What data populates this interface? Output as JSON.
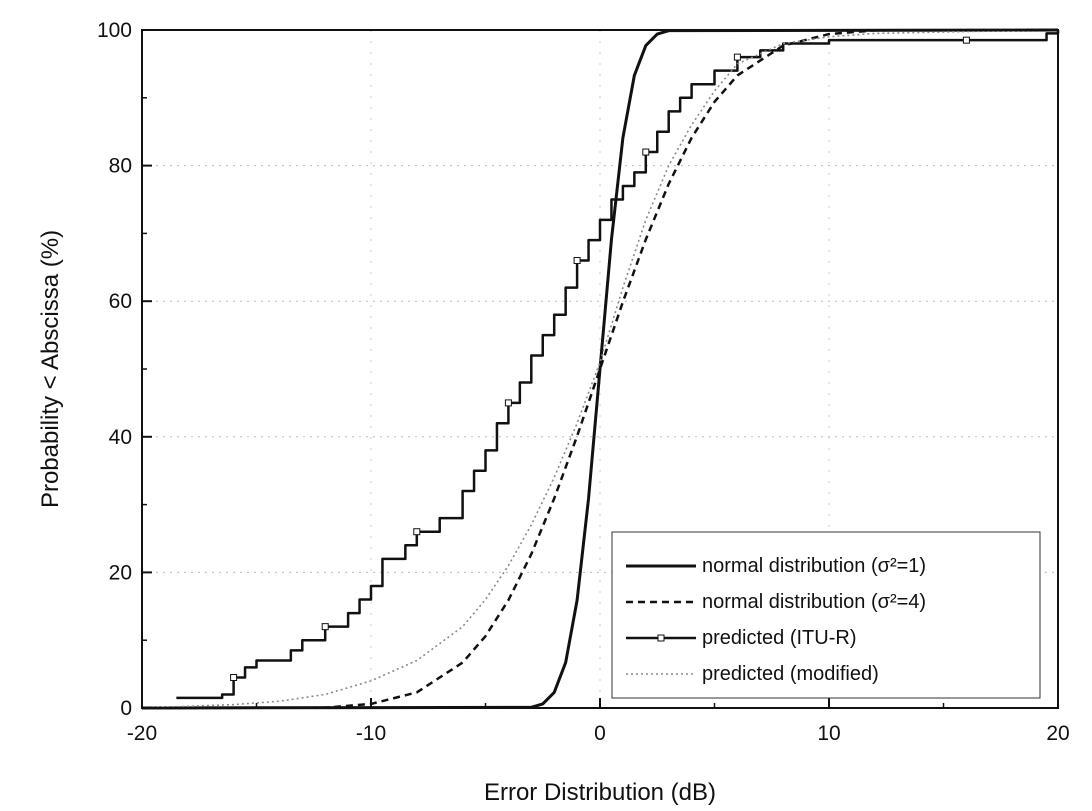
{
  "chart_data": {
    "type": "line",
    "title": "",
    "xlabel": "Error Distribution (dB)",
    "ylabel": "Probability < Abscissa (%)",
    "xlim": [
      -20,
      20
    ],
    "ylim": [
      0,
      100
    ],
    "x_ticks": [
      "-20",
      "-10",
      "0",
      "10",
      "20"
    ],
    "y_ticks": [
      "0",
      "20",
      "40",
      "60",
      "80",
      "100"
    ],
    "grid": "faint-dotted",
    "legend": {
      "placement": "bottom-right",
      "entries": [
        "normal distribution (σ²=1)",
        "normal distribution (σ²=4)",
        "predicted (ITU-R)",
        "predicted (modified)"
      ]
    },
    "series": [
      {
        "name": "normal distribution (σ²=1)",
        "style": "solid",
        "color": "#111111",
        "x": [
          -20,
          -3,
          -2.5,
          -2,
          -1.5,
          -1,
          -0.5,
          0,
          0.5,
          1,
          1.5,
          2,
          2.5,
          3,
          20
        ],
        "y": [
          0,
          0.1,
          0.6,
          2.3,
          6.7,
          15.9,
          30.9,
          50,
          69.1,
          84.1,
          93.3,
          97.7,
          99.4,
          99.9,
          100
        ]
      },
      {
        "name": "normal distribution (σ²=4)",
        "style": "dashed",
        "color": "#111111",
        "x": [
          -20,
          -12,
          -10,
          -8,
          -6,
          -5,
          -4,
          -3,
          -2,
          -1,
          0,
          1,
          2,
          3,
          4,
          5,
          6,
          8,
          10,
          12,
          20
        ],
        "y": [
          0,
          0.05,
          0.6,
          2.3,
          6.7,
          10.6,
          15.9,
          22.7,
          30.9,
          40.1,
          50,
          59.9,
          69.1,
          77.3,
          84.1,
          89.4,
          93.3,
          97.7,
          99.4,
          99.95,
          100
        ]
      },
      {
        "name": "predicted (ITU-R)",
        "style": "solid-step",
        "color": "#111111",
        "x": [
          -18.5,
          -17.5,
          -16.5,
          -16,
          -15.5,
          -15,
          -14,
          -13.5,
          -13,
          -12,
          -11,
          -10.5,
          -10,
          -9.5,
          -8.5,
          -8,
          -7,
          -6,
          -5.5,
          -5,
          -4.5,
          -4,
          -3.5,
          -3,
          -2.5,
          -2,
          -1.5,
          -1,
          -0.5,
          0,
          0.5,
          1,
          1.5,
          2,
          2.5,
          3,
          3.5,
          4,
          5,
          6,
          7,
          8,
          10,
          12,
          14,
          16,
          18,
          19.5,
          20
        ],
        "y": [
          1.5,
          1.5,
          2,
          4.5,
          6,
          7,
          7,
          8.5,
          10,
          12,
          14,
          16,
          18,
          22,
          24,
          26,
          28,
          32,
          35,
          38,
          42,
          45,
          48,
          52,
          55,
          58,
          62,
          66,
          69,
          72,
          75,
          77,
          79,
          82,
          85,
          88,
          90,
          92,
          94,
          96,
          97,
          98,
          98.5,
          98.5,
          98.5,
          98.5,
          98.5,
          99.5,
          100
        ]
      },
      {
        "name": "predicted (modified)",
        "style": "dotted",
        "color": "#8a8a8a",
        "x": [
          -20,
          -16,
          -14,
          -12,
          -10,
          -8,
          -6,
          -5,
          -4,
          -3,
          -2,
          -1,
          0,
          1,
          2,
          3,
          4,
          5,
          6,
          8,
          10,
          12,
          15,
          18,
          20
        ],
        "y": [
          0,
          0.5,
          1,
          2,
          4,
          7,
          12,
          16,
          21,
          27,
          34,
          42,
          51,
          62,
          72,
          80,
          86,
          91,
          95,
          98,
          99,
          99.5,
          99.7,
          99.9,
          100
        ]
      }
    ]
  }
}
